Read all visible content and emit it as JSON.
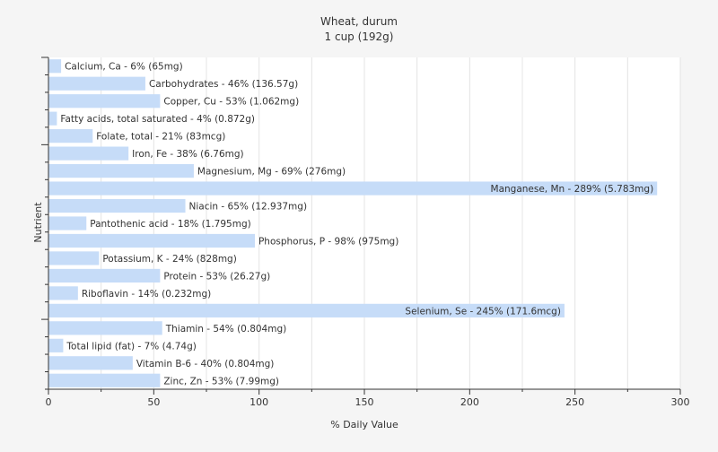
{
  "chart_data": {
    "type": "bar",
    "orientation": "horizontal",
    "title": "Wheat, durum",
    "subtitle": "1 cup (192g)",
    "xlabel": "% Daily Value",
    "ylabel": "Nutrient",
    "xlim": [
      0,
      300
    ],
    "xticks": [
      0,
      50,
      100,
      150,
      200,
      250,
      300
    ],
    "grid": true,
    "bar_color": "#c6dcf8",
    "grid_color": "#e4e4e4",
    "categories": [
      "Calcium, Ca",
      "Carbohydrates",
      "Copper, Cu",
      "Fatty acids, total saturated",
      "Folate, total",
      "Iron, Fe",
      "Magnesium, Mg",
      "Manganese, Mn",
      "Niacin",
      "Pantothenic acid",
      "Phosphorus, P",
      "Potassium, K",
      "Protein",
      "Riboflavin",
      "Selenium, Se",
      "Thiamin",
      "Total lipid (fat)",
      "Vitamin B-6",
      "Zinc, Zn"
    ],
    "values": [
      6,
      46,
      53,
      4,
      21,
      38,
      69,
      289,
      65,
      18,
      98,
      24,
      53,
      14,
      245,
      54,
      7,
      40,
      53
    ],
    "labels": [
      "Calcium, Ca - 6% (65mg)",
      "Carbohydrates - 46% (136.57g)",
      "Copper, Cu - 53% (1.062mg)",
      "Fatty acids, total saturated - 4% (0.872g)",
      "Folate, total - 21% (83mcg)",
      "Iron, Fe - 38% (6.76mg)",
      "Magnesium, Mg - 69% (276mg)",
      "Manganese, Mn - 289% (5.783mg)",
      "Niacin - 65% (12.937mg)",
      "Pantothenic acid - 18% (1.795mg)",
      "Phosphorus, P - 98% (975mg)",
      "Potassium, K - 24% (828mg)",
      "Protein - 53% (26.27g)",
      "Riboflavin - 14% (0.232mg)",
      "Selenium, Se - 245% (171.6mcg)",
      "Thiamin - 54% (0.804mg)",
      "Total lipid (fat) - 7% (4.74g)",
      "Vitamin B-6 - 40% (0.804mg)",
      "Zinc, Zn - 53% (7.99mg)"
    ]
  }
}
